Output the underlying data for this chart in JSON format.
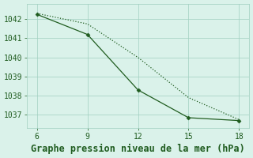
{
  "x": [
    6,
    9,
    12,
    15,
    18
  ],
  "line_solid": [
    1042.25,
    1041.2,
    1038.3,
    1036.85,
    1036.7
  ],
  "line_dotted": [
    1042.3,
    1041.75,
    1040.0,
    1037.9,
    1036.75
  ],
  "line_color": "#1f5c1f",
  "bg_color": "#daf2ea",
  "grid_color": "#a0cfc0",
  "xlabel": "Graphe pression niveau de la mer (hPa)",
  "xlabel_color": "#1f5c1f",
  "xlabel_fontsize": 8.5,
  "xticks": [
    6,
    9,
    12,
    15,
    18
  ],
  "yticks": [
    1037,
    1038,
    1039,
    1040,
    1041,
    1042
  ],
  "xlim": [
    5.4,
    18.6
  ],
  "ylim": [
    1036.3,
    1042.8
  ],
  "tick_fontsize": 7,
  "tick_color": "#1f5c1f",
  "spine_color": "#a0cfc0"
}
